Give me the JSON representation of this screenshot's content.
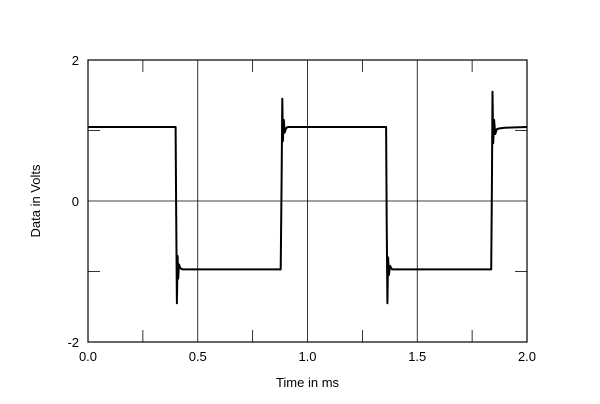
{
  "chart_data": {
    "type": "line",
    "title": "",
    "xlabel": "Time in ms",
    "ylabel": "Data in Volts",
    "xlim": [
      0,
      2
    ],
    "ylim": [
      -2,
      2
    ],
    "x_ticks": [
      0,
      0.5,
      1,
      1.5,
      2
    ],
    "x_tick_labels": [
      "0.0",
      "0.5",
      "1.0",
      "1.5",
      "2.0"
    ],
    "y_ticks": [
      -2,
      0,
      2
    ],
    "y_tick_labels": [
      "-2",
      "0",
      "2"
    ],
    "grid": true,
    "series": [
      {
        "color": "#000000",
        "x": [
          0,
          0.399,
          0.402,
          0.405,
          0.408,
          0.411,
          0.414,
          0.42,
          0.43,
          0.44,
          0.878,
          0.882,
          0.885,
          0.888,
          0.892,
          0.896,
          0.902,
          0.91,
          0.925,
          1.358,
          1.361,
          1.364,
          1.367,
          1.371,
          1.376,
          1.385,
          1.4,
          1.837,
          1.84,
          1.843,
          1.846,
          1.85,
          1.855,
          1.863,
          1.875,
          1.9,
          2.0
        ],
        "y": [
          1.05,
          1.05,
          -0.2,
          -1.45,
          -0.78,
          -1.1,
          -0.9,
          -0.95,
          -0.97,
          -0.97,
          -0.97,
          0.3,
          1.45,
          0.85,
          1.15,
          0.97,
          1.03,
          1.05,
          1.05,
          1.05,
          -0.3,
          -1.45,
          -0.8,
          -1.05,
          -0.92,
          -0.97,
          -0.97,
          -0.97,
          0.2,
          1.55,
          0.82,
          1.15,
          0.95,
          1.02,
          1.03,
          1.04,
          1.05
        ]
      }
    ]
  }
}
